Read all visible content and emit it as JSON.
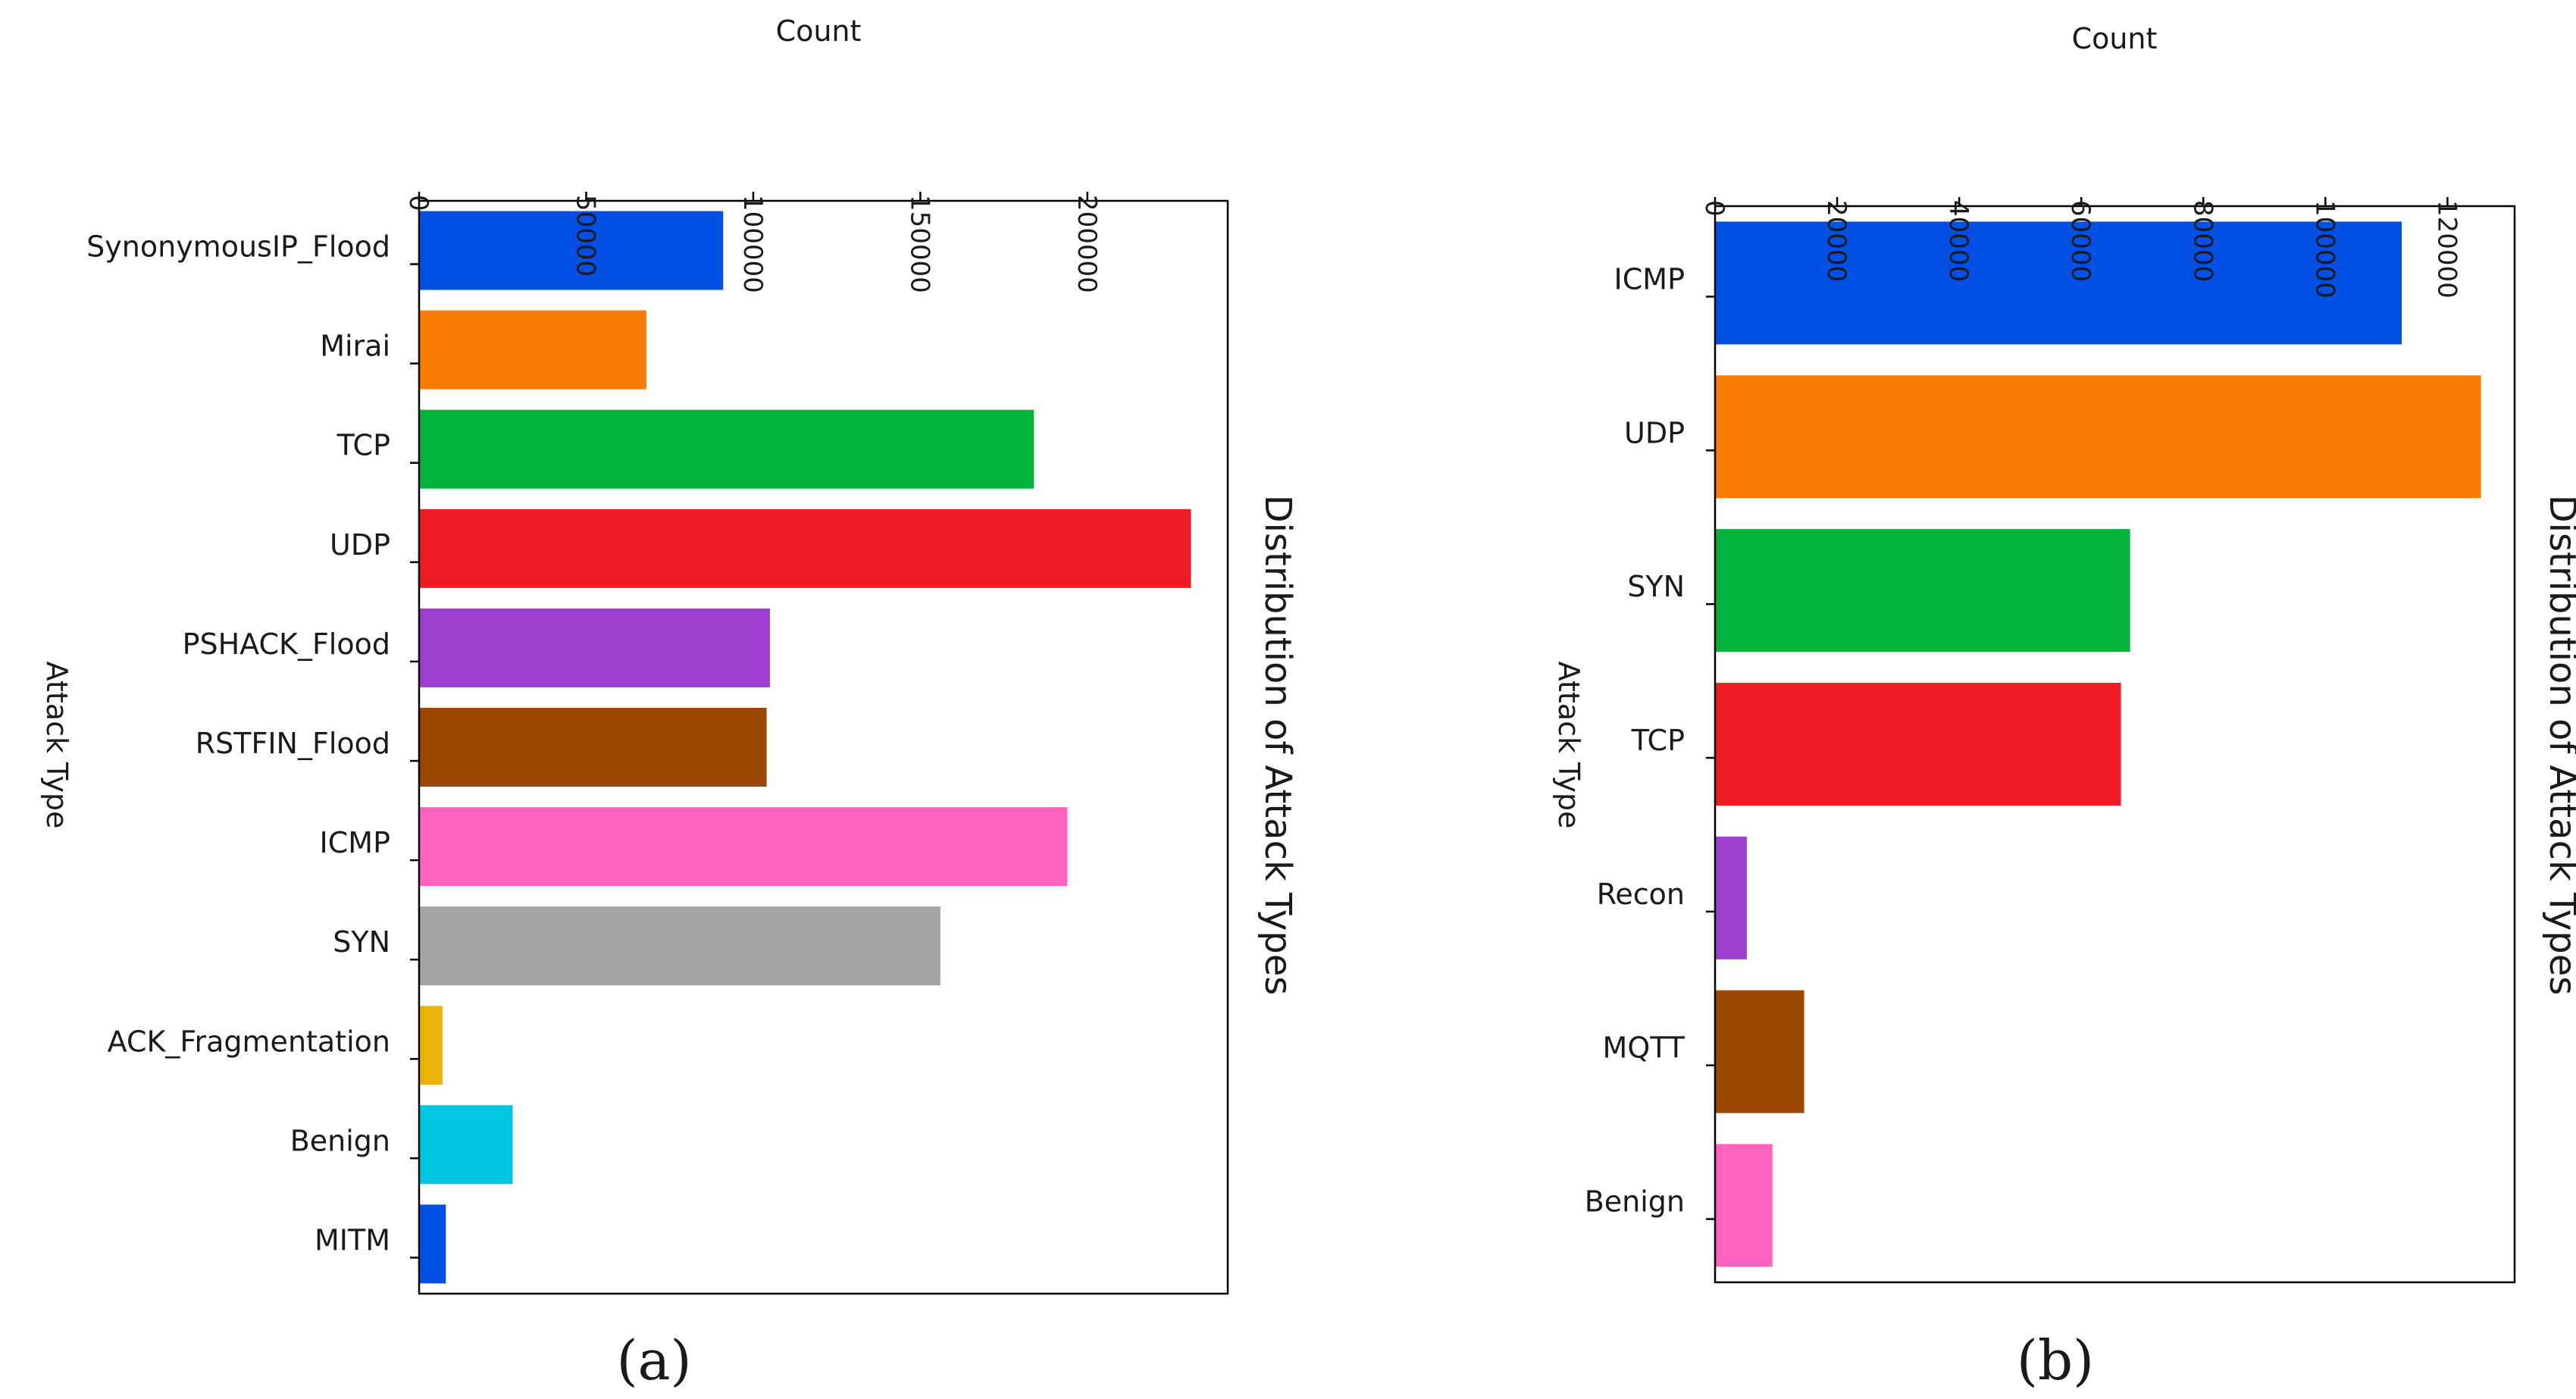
{
  "chart_data": [
    {
      "type": "bar",
      "orientation": "horizontal",
      "title": "Distribution of Attack Types",
      "xlabel": "Count",
      "ylabel": "Attack Type",
      "caption": "(a)",
      "xlim": [
        0,
        242000
      ],
      "x_ticks": [
        0,
        50000,
        100000,
        150000,
        200000
      ],
      "categories": [
        "SynonymousIP_Flood",
        "Mirai",
        "TCP",
        "UDP",
        "PSHACK_Flood",
        "RSTFIN_Flood",
        "ICMP",
        "SYN",
        "ACK_Fragmentation",
        "Benign",
        "MITM"
      ],
      "values": [
        91000,
        68000,
        184000,
        231000,
        105000,
        104000,
        194000,
        156000,
        7000,
        28000,
        8000
      ],
      "colors": [
        "#0250e3",
        "#f97c06",
        "#02b43c",
        "#ec1b24",
        "#9d40d1",
        "#9b4701",
        "#fd62bf",
        "#a5a5a5",
        "#ebb208",
        "#02c5e2",
        "#0250e3"
      ],
      "grid": false,
      "legend": "none"
    },
    {
      "type": "bar",
      "orientation": "horizontal",
      "title": "Distribution of Attack Types",
      "xlabel": "Count",
      "ylabel": "Attack Type",
      "caption": "(b)",
      "xlim": [
        0,
        131000
      ],
      "x_ticks": [
        0,
        20000,
        40000,
        60000,
        80000,
        100000,
        120000
      ],
      "categories": [
        "ICMP",
        "UDP",
        "SYN",
        "TCP",
        "Recon",
        "MQTT",
        "Benign"
      ],
      "values": [
        112500,
        125500,
        68000,
        66500,
        5200,
        14600,
        9400
      ],
      "colors": [
        "#0250e3",
        "#f97c06",
        "#02b43c",
        "#ec1b24",
        "#9d40d1",
        "#9b4701",
        "#fd62bf"
      ],
      "grid": false,
      "legend": "none"
    }
  ]
}
